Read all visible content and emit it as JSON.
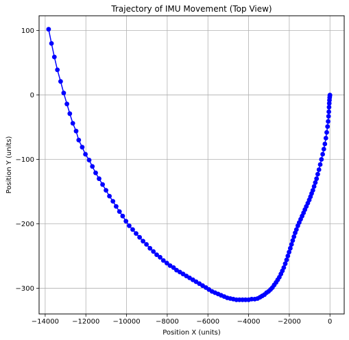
{
  "chart_data": {
    "type": "line",
    "title": "Trajectory of IMU Movement (Top View)",
    "xlabel": "Position X (units)",
    "ylabel": "Position Y (units)",
    "xlim": [
      -14300,
      700
    ],
    "ylim": [
      -340,
      123
    ],
    "grid": true,
    "xticks": [
      {
        "value": -14000,
        "label": "−14000"
      },
      {
        "value": -12000,
        "label": "−12000"
      },
      {
        "value": -10000,
        "label": "−10000"
      },
      {
        "value": -8000,
        "label": "−8000"
      },
      {
        "value": -6000,
        "label": "−6000"
      },
      {
        "value": -4000,
        "label": "−4000"
      },
      {
        "value": -2000,
        "label": "−2000"
      },
      {
        "value": 0,
        "label": "0"
      }
    ],
    "yticks": [
      {
        "value": 100,
        "label": "100"
      },
      {
        "value": 0,
        "label": "0"
      },
      {
        "value": -100,
        "label": "−100"
      },
      {
        "value": -200,
        "label": "−200"
      },
      {
        "value": -300,
        "label": "−300"
      }
    ],
    "series": [
      {
        "color": "#0000ff",
        "marker": "circle",
        "points": [
          [
            -13830,
            102
          ],
          [
            -13690,
            80
          ],
          [
            -13550,
            59
          ],
          [
            -13400,
            39
          ],
          [
            -13240,
            21
          ],
          [
            -13090,
            3
          ],
          [
            -12930,
            -14
          ],
          [
            -12790,
            -29
          ],
          [
            -12640,
            -44
          ],
          [
            -12480,
            -56
          ],
          [
            -12350,
            -70
          ],
          [
            -12180,
            -81
          ],
          [
            -12020,
            -92
          ],
          [
            -11840,
            -101
          ],
          [
            -11680,
            -111
          ],
          [
            -11520,
            -121
          ],
          [
            -11350,
            -130
          ],
          [
            -11180,
            -139
          ],
          [
            -11010,
            -148
          ],
          [
            -10840,
            -157
          ],
          [
            -10670,
            -165
          ],
          [
            -10510,
            -173
          ],
          [
            -10350,
            -181
          ],
          [
            -10190,
            -188
          ],
          [
            -10030,
            -196
          ],
          [
            -9870,
            -203
          ],
          [
            -9700,
            -209
          ],
          [
            -9530,
            -215
          ],
          [
            -9360,
            -221
          ],
          [
            -9190,
            -227
          ],
          [
            -9020,
            -232
          ],
          [
            -8850,
            -238
          ],
          [
            -8680,
            -243
          ],
          [
            -8520,
            -248
          ],
          [
            -8350,
            -252
          ],
          [
            -8190,
            -257
          ],
          [
            -8020,
            -261
          ],
          [
            -7860,
            -265
          ],
          [
            -7690,
            -268
          ],
          [
            -7540,
            -272
          ],
          [
            -7380,
            -275
          ],
          [
            -7220,
            -278
          ],
          [
            -7060,
            -281
          ],
          [
            -6900,
            -284
          ],
          [
            -6740,
            -287
          ],
          [
            -6580,
            -290
          ],
          [
            -6420,
            -293
          ],
          [
            -6260,
            -296
          ],
          [
            -6100,
            -299
          ],
          [
            -5950,
            -302
          ],
          [
            -5800,
            -305
          ],
          [
            -5650,
            -307
          ],
          [
            -5500,
            -309
          ],
          [
            -5350,
            -311
          ],
          [
            -5200,
            -313
          ],
          [
            -5050,
            -315
          ],
          [
            -4900,
            -316
          ],
          [
            -4750,
            -317
          ],
          [
            -4600,
            -318
          ],
          [
            -4450,
            -318
          ],
          [
            -4300,
            -318
          ],
          [
            -4150,
            -318
          ],
          [
            -4000,
            -318
          ],
          [
            -3850,
            -317
          ],
          [
            -3700,
            -317
          ],
          [
            -3560,
            -316
          ],
          [
            -3440,
            -314
          ],
          [
            -3330,
            -312
          ],
          [
            -3220,
            -310
          ],
          [
            -3120,
            -307
          ],
          [
            -3020,
            -305
          ],
          [
            -2920,
            -302
          ],
          [
            -2830,
            -299
          ],
          [
            -2740,
            -295
          ],
          [
            -2650,
            -291
          ],
          [
            -2570,
            -287
          ],
          [
            -2490,
            -283
          ],
          [
            -2410,
            -278
          ],
          [
            -2340,
            -273
          ],
          [
            -2270,
            -268
          ],
          [
            -2200,
            -262
          ],
          [
            -2130,
            -256
          ],
          [
            -2070,
            -250
          ],
          [
            -2010,
            -244
          ],
          [
            -1950,
            -238
          ],
          [
            -1890,
            -232
          ],
          [
            -1830,
            -226
          ],
          [
            -1770,
            -220
          ],
          [
            -1710,
            -214
          ],
          [
            -1650,
            -209
          ],
          [
            -1580,
            -203
          ],
          [
            -1510,
            -198
          ],
          [
            -1440,
            -193
          ],
          [
            -1370,
            -188
          ],
          [
            -1300,
            -183
          ],
          [
            -1230,
            -178
          ],
          [
            -1160,
            -173
          ],
          [
            -1090,
            -168
          ],
          [
            -1020,
            -163
          ],
          [
            -960,
            -158
          ],
          [
            -900,
            -153
          ],
          [
            -840,
            -148
          ],
          [
            -780,
            -142
          ],
          [
            -720,
            -136
          ],
          [
            -660,
            -130
          ],
          [
            -600,
            -123
          ],
          [
            -540,
            -116
          ],
          [
            -480,
            -108
          ],
          [
            -420,
            -100
          ],
          [
            -360,
            -92
          ],
          [
            -300,
            -84
          ],
          [
            -250,
            -76
          ],
          [
            -200,
            -67
          ],
          [
            -160,
            -58
          ],
          [
            -120,
            -49
          ],
          [
            -90,
            -41
          ],
          [
            -70,
            -33
          ],
          [
            -55,
            -26
          ],
          [
            -45,
            -19
          ],
          [
            -35,
            -13
          ],
          [
            -25,
            -8
          ],
          [
            -15,
            -4
          ],
          [
            -5,
            -1
          ],
          [
            0,
            0
          ]
        ]
      }
    ]
  }
}
